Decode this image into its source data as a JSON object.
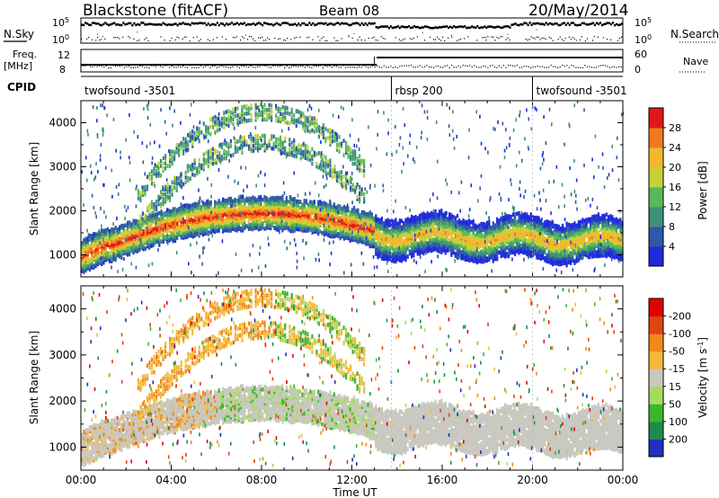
{
  "header": {
    "station": "Blackstone (fitACF)",
    "beam": "Beam 08",
    "date": "20/May/2014"
  },
  "status_panels": {
    "nsky_label": "N.Sky",
    "nsearch_label": "N.Search",
    "noise_ticks_left": [
      "10^5",
      "10^0"
    ],
    "noise_ticks_right": [
      "10^5",
      "10^0"
    ],
    "freq_label_top": "Freq.",
    "freq_label_bottom": "[MHz]",
    "freq_ticks": [
      "12",
      "8"
    ],
    "nave_label": "Nave",
    "nave_ticks": [
      "60",
      "0"
    ],
    "cpid_label": "CPID",
    "cpid_segments": [
      {
        "name": "twofsound -3501",
        "start_hour": 0,
        "end_hour": 13.75
      },
      {
        "name": "rbsp 200",
        "start_hour": 13.75,
        "end_hour": 20.0
      },
      {
        "name": "twofsound -3501",
        "start_hour": 20.0,
        "end_hour": 24
      }
    ]
  },
  "chart_data": [
    {
      "type": "heatmap",
      "quantity": "Power",
      "ylabel": "Slant Range [km]",
      "ylim": [
        500,
        4500
      ],
      "y_ticks": [
        1000,
        2000,
        3000,
        4000
      ],
      "xlim": [
        0,
        24
      ],
      "x_ticks": [
        "00:00",
        "04:00",
        "08:00",
        "12:00",
        "16:00",
        "20:00",
        "00:00"
      ],
      "colorbar_label": "Power [dB]",
      "colorbar_ticks": [
        4,
        8,
        12,
        16,
        20,
        24,
        28
      ],
      "colorbar_colors": [
        "#1f2bdc",
        "#2e58a8",
        "#3f8f7a",
        "#58b85a",
        "#c9d03a",
        "#f2b72a",
        "#f07a1e",
        "#e01818"
      ],
      "features": [
        {
          "name": "main-band",
          "hour_range": [
            0,
            13
          ],
          "peak_range_km": 2000,
          "peak_hour": 8,
          "base_range_km": 950
        },
        {
          "name": "upper-band",
          "hour_range": [
            3,
            12
          ],
          "peak_range_km": 4300,
          "peak_hour": 8
        },
        {
          "name": "late-band",
          "hour_range": [
            13,
            24
          ],
          "range_km": [
            1200,
            2000
          ]
        }
      ]
    },
    {
      "type": "heatmap",
      "quantity": "Velocity",
      "ylabel": "Slant Range [km]",
      "xlabel": "Time UT",
      "ylim": [
        500,
        4500
      ],
      "y_ticks": [
        1000,
        2000,
        3000,
        4000
      ],
      "xlim": [
        0,
        24
      ],
      "x_ticks": [
        "00:00",
        "04:00",
        "08:00",
        "12:00",
        "16:00",
        "20:00",
        "00:00"
      ],
      "colorbar_label": "Velocity [m s-1]",
      "colorbar_label_main": "Velocity [m s",
      "colorbar_label_exp": "-1",
      "colorbar_label_close": "]",
      "colorbar_ticks": [
        200,
        100,
        50,
        15,
        -15,
        -50,
        -100,
        -200
      ],
      "colorbar_colors": [
        "#2030c0",
        "#1c8c4c",
        "#3fb52f",
        "#a6db60",
        "#c8c8c0",
        "#f4b93a",
        "#f08a1a",
        "#e04410",
        "#e00000"
      ],
      "ground_scatter_color": "#c8c8c0"
    }
  ]
}
